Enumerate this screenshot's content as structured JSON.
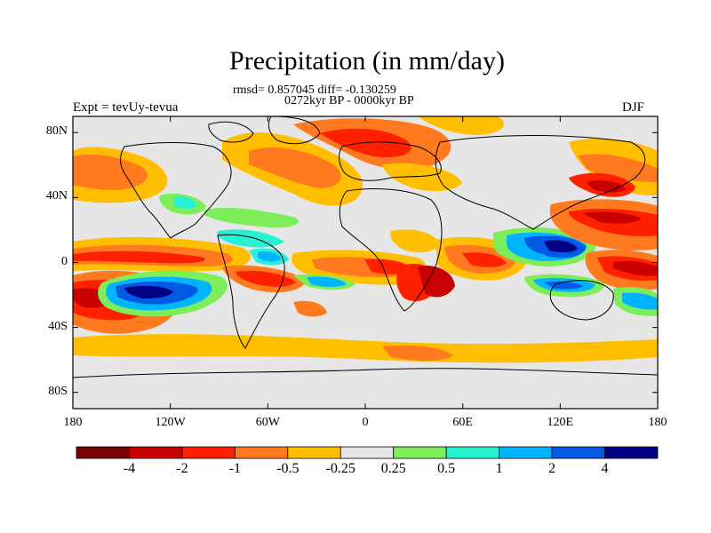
{
  "header": {
    "title": "Precipitation (in mm/day)",
    "stats": "rmsd= 0.857045 diff= -0.130259",
    "period": "0272kyr BP - 0000kyr BP",
    "experiment": "Expt = tevUy-tevua",
    "season": "DJF"
  },
  "axes": {
    "lat_labels": [
      "80N",
      "40N",
      "0",
      "40S",
      "80S"
    ],
    "lat_values": [
      80,
      40,
      0,
      -40,
      -80
    ],
    "lon_labels": [
      "180",
      "120W",
      "60W",
      "0",
      "60E",
      "120E",
      "180"
    ],
    "lon_values": [
      -180,
      -120,
      -60,
      0,
      60,
      120,
      180
    ]
  },
  "colorbar": {
    "labels": [
      "-4",
      "-2",
      "-1",
      "-0.5",
      "-0.25",
      "0.25",
      "0.5",
      "1",
      "2",
      "4"
    ],
    "colors": [
      "#7a0000",
      "#c80000",
      "#ff2000",
      "#ff7a1e",
      "#ffbf00",
      "#e6e6e6",
      "#7ded5a",
      "#28f0d2",
      "#00b4ff",
      "#005ae6",
      "#000082"
    ]
  },
  "map": {
    "background_color": "#e6e6e6",
    "features": [
      {
        "name": "anomaly-north-pacific",
        "value": -1
      },
      {
        "name": "anomaly-north-atlantic-europe",
        "value": -1
      },
      {
        "name": "anomaly-equatorial-pacific",
        "value": -2
      },
      {
        "name": "anomaly-south-pacific",
        "value": -2
      },
      {
        "name": "anomaly-southeast-pacific-wet",
        "value": 4
      },
      {
        "name": "anomaly-southern-ocean",
        "value": -0.25
      },
      {
        "name": "anomaly-indian-ocean-dry",
        "value": -2
      },
      {
        "name": "anomaly-indian-ocean-wet",
        "value": 2
      },
      {
        "name": "anomaly-maritime-continent-wet",
        "value": 4
      },
      {
        "name": "anomaly-west-pacific-dry",
        "value": -2
      },
      {
        "name": "anomaly-africa-dry",
        "value": -1
      },
      {
        "name": "anomaly-gulf-wet",
        "value": 0.5
      }
    ]
  }
}
